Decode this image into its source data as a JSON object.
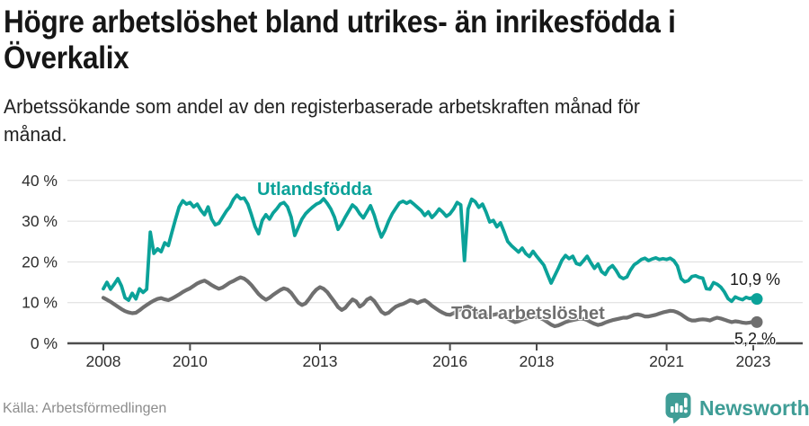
{
  "header": {
    "title_lines": [
      "Högre arbetslöshet bland utrikes- än inrikesfödda i",
      "Överkalix"
    ],
    "subtitle_lines": [
      "Arbetssökande som andel av den registerbaserade arbetskraften månad för",
      "månad."
    ]
  },
  "footer": {
    "source": "Källa: Arbetsförmedlingen",
    "brand": "Newsworthy",
    "brand_color": "#3f9d96"
  },
  "chart_data": {
    "type": "line",
    "title": "Högre arbetslöshet bland utrikes- än inrikesfödda i Överkalix",
    "unit": "%",
    "frequency": "monthly",
    "x_start": "2008-01",
    "x_end": "2023-02",
    "x_tick_labels": [
      "2008",
      "2010",
      "2013",
      "2016",
      "2018",
      "2021",
      "2023"
    ],
    "y_tick_labels": [
      "0 %",
      "10 %",
      "20 %",
      "30 %",
      "40 %"
    ],
    "ylim": [
      0,
      42
    ],
    "grid": "horizontal",
    "axis_color": "#4d4d4d",
    "grid_color": "#dcdcdc",
    "series": [
      {
        "name": "Utlandsfödda",
        "color": "#0ba299",
        "end_label": "10,9 %",
        "end_value": 10.9,
        "values": [
          13.4,
          15.0,
          13.3,
          14.5,
          15.9,
          14.1,
          11.2,
          10.6,
          12.3,
          10.9,
          13.4,
          12.5,
          13.3,
          27.3,
          22.1,
          23.2,
          22.5,
          24.7,
          24.0,
          27.3,
          30.5,
          33.5,
          35.0,
          34.2,
          34.6,
          33.5,
          34.2,
          32.7,
          31.6,
          33.5,
          30.5,
          29.1,
          29.5,
          31.0,
          32.4,
          33.5,
          35.3,
          36.4,
          35.5,
          35.7,
          34.2,
          31.6,
          28.7,
          26.9,
          30.2,
          31.6,
          30.5,
          32.0,
          33.0,
          34.2,
          34.6,
          33.5,
          31.0,
          26.5,
          28.5,
          30.5,
          31.8,
          32.7,
          33.5,
          34.2,
          34.6,
          35.5,
          34.4,
          33.0,
          31.0,
          28.0,
          29.3,
          31.0,
          32.5,
          34.0,
          33.2,
          31.8,
          30.8,
          32.3,
          33.8,
          31.5,
          28.5,
          26.1,
          27.8,
          30.0,
          31.8,
          33.2,
          34.5,
          34.9,
          34.4,
          34.9,
          34.2,
          33.4,
          32.6,
          31.4,
          32.3,
          30.9,
          31.8,
          33.0,
          32.2,
          31.2,
          31.8,
          33.0,
          34.6,
          34.0,
          20.3,
          33.0,
          35.4,
          34.8,
          33.4,
          34.2,
          32.2,
          29.8,
          30.2,
          28.6,
          29.6,
          27.4,
          25.0,
          24.0,
          23.2,
          22.4,
          23.4,
          22.0,
          21.3,
          22.6,
          21.4,
          20.3,
          19.2,
          17.0,
          14.8,
          16.6,
          18.4,
          20.4,
          21.6,
          20.8,
          21.4,
          19.6,
          19.3,
          20.3,
          21.4,
          19.8,
          18.4,
          19.5,
          17.6,
          16.9,
          18.4,
          19.1,
          17.9,
          16.4,
          15.9,
          16.3,
          18.0,
          19.3,
          19.9,
          20.6,
          20.9,
          20.3,
          20.7,
          21.0,
          20.6,
          20.8,
          20.6,
          20.9,
          20.3,
          19.0,
          15.9,
          15.1,
          15.4,
          16.4,
          16.6,
          16.2,
          16.0,
          13.4,
          13.3,
          14.9,
          14.5,
          13.8,
          12.6,
          11.0,
          10.3,
          11.4,
          11.0,
          10.7,
          11.3,
          11.0,
          11.3,
          10.9
        ]
      },
      {
        "name": "Total arbetslöshet",
        "color": "#6f6f6f",
        "end_label": "5,2 %",
        "end_value": 5.2,
        "values": [
          11.2,
          10.7,
          10.2,
          9.6,
          9.0,
          8.4,
          7.9,
          7.6,
          7.4,
          7.5,
          8.1,
          8.8,
          9.4,
          10.0,
          10.5,
          10.9,
          11.1,
          10.8,
          10.6,
          11.0,
          11.5,
          12.0,
          12.6,
          13.1,
          13.5,
          14.1,
          14.7,
          15.1,
          15.4,
          14.9,
          14.3,
          13.8,
          13.4,
          13.7,
          14.3,
          14.9,
          15.3,
          15.8,
          16.2,
          15.9,
          15.2,
          14.3,
          13.2,
          12.1,
          11.3,
          10.7,
          11.2,
          11.9,
          12.5,
          13.1,
          13.5,
          13.2,
          12.4,
          11.2,
          10.0,
          9.4,
          9.8,
          10.9,
          12.2,
          13.2,
          13.8,
          13.4,
          12.6,
          11.4,
          10.2,
          8.9,
          8.2,
          8.7,
          9.8,
          10.8,
          10.3,
          9.0,
          9.6,
          10.7,
          11.2,
          10.4,
          9.1,
          7.8,
          7.2,
          7.5,
          8.3,
          9.0,
          9.4,
          9.7,
          10.1,
          10.6,
          10.4,
          9.9,
          10.3,
          10.6,
          10.0,
          9.2,
          8.6,
          8.0,
          7.5,
          7.1,
          7.0,
          7.4,
          7.9,
          8.4,
          8.8,
          9.0,
          8.6,
          8.0,
          7.4,
          6.9,
          6.6,
          6.8,
          7.0,
          7.2,
          7.0,
          6.6,
          6.1,
          5.6,
          5.2,
          5.4,
          5.8,
          6.1,
          6.3,
          6.5,
          6.4,
          6.2,
          5.8,
          5.2,
          4.6,
          4.2,
          4.4,
          4.8,
          5.2,
          5.5,
          5.7,
          5.9,
          6.1,
          6.0,
          5.7,
          5.2,
          4.8,
          4.5,
          4.7,
          5.1,
          5.4,
          5.7,
          5.9,
          6.1,
          6.3,
          6.3,
          6.6,
          7.0,
          7.1,
          6.9,
          6.6,
          6.6,
          6.8,
          7.0,
          7.3,
          7.6,
          7.8,
          8.0,
          7.9,
          7.6,
          7.1,
          6.5,
          5.9,
          5.6,
          5.6,
          5.8,
          5.9,
          5.8,
          5.6,
          6.0,
          6.3,
          6.1,
          5.8,
          5.5,
          5.2,
          5.4,
          5.3,
          5.1,
          5.0,
          5.1,
          5.3,
          5.2
        ]
      }
    ]
  }
}
